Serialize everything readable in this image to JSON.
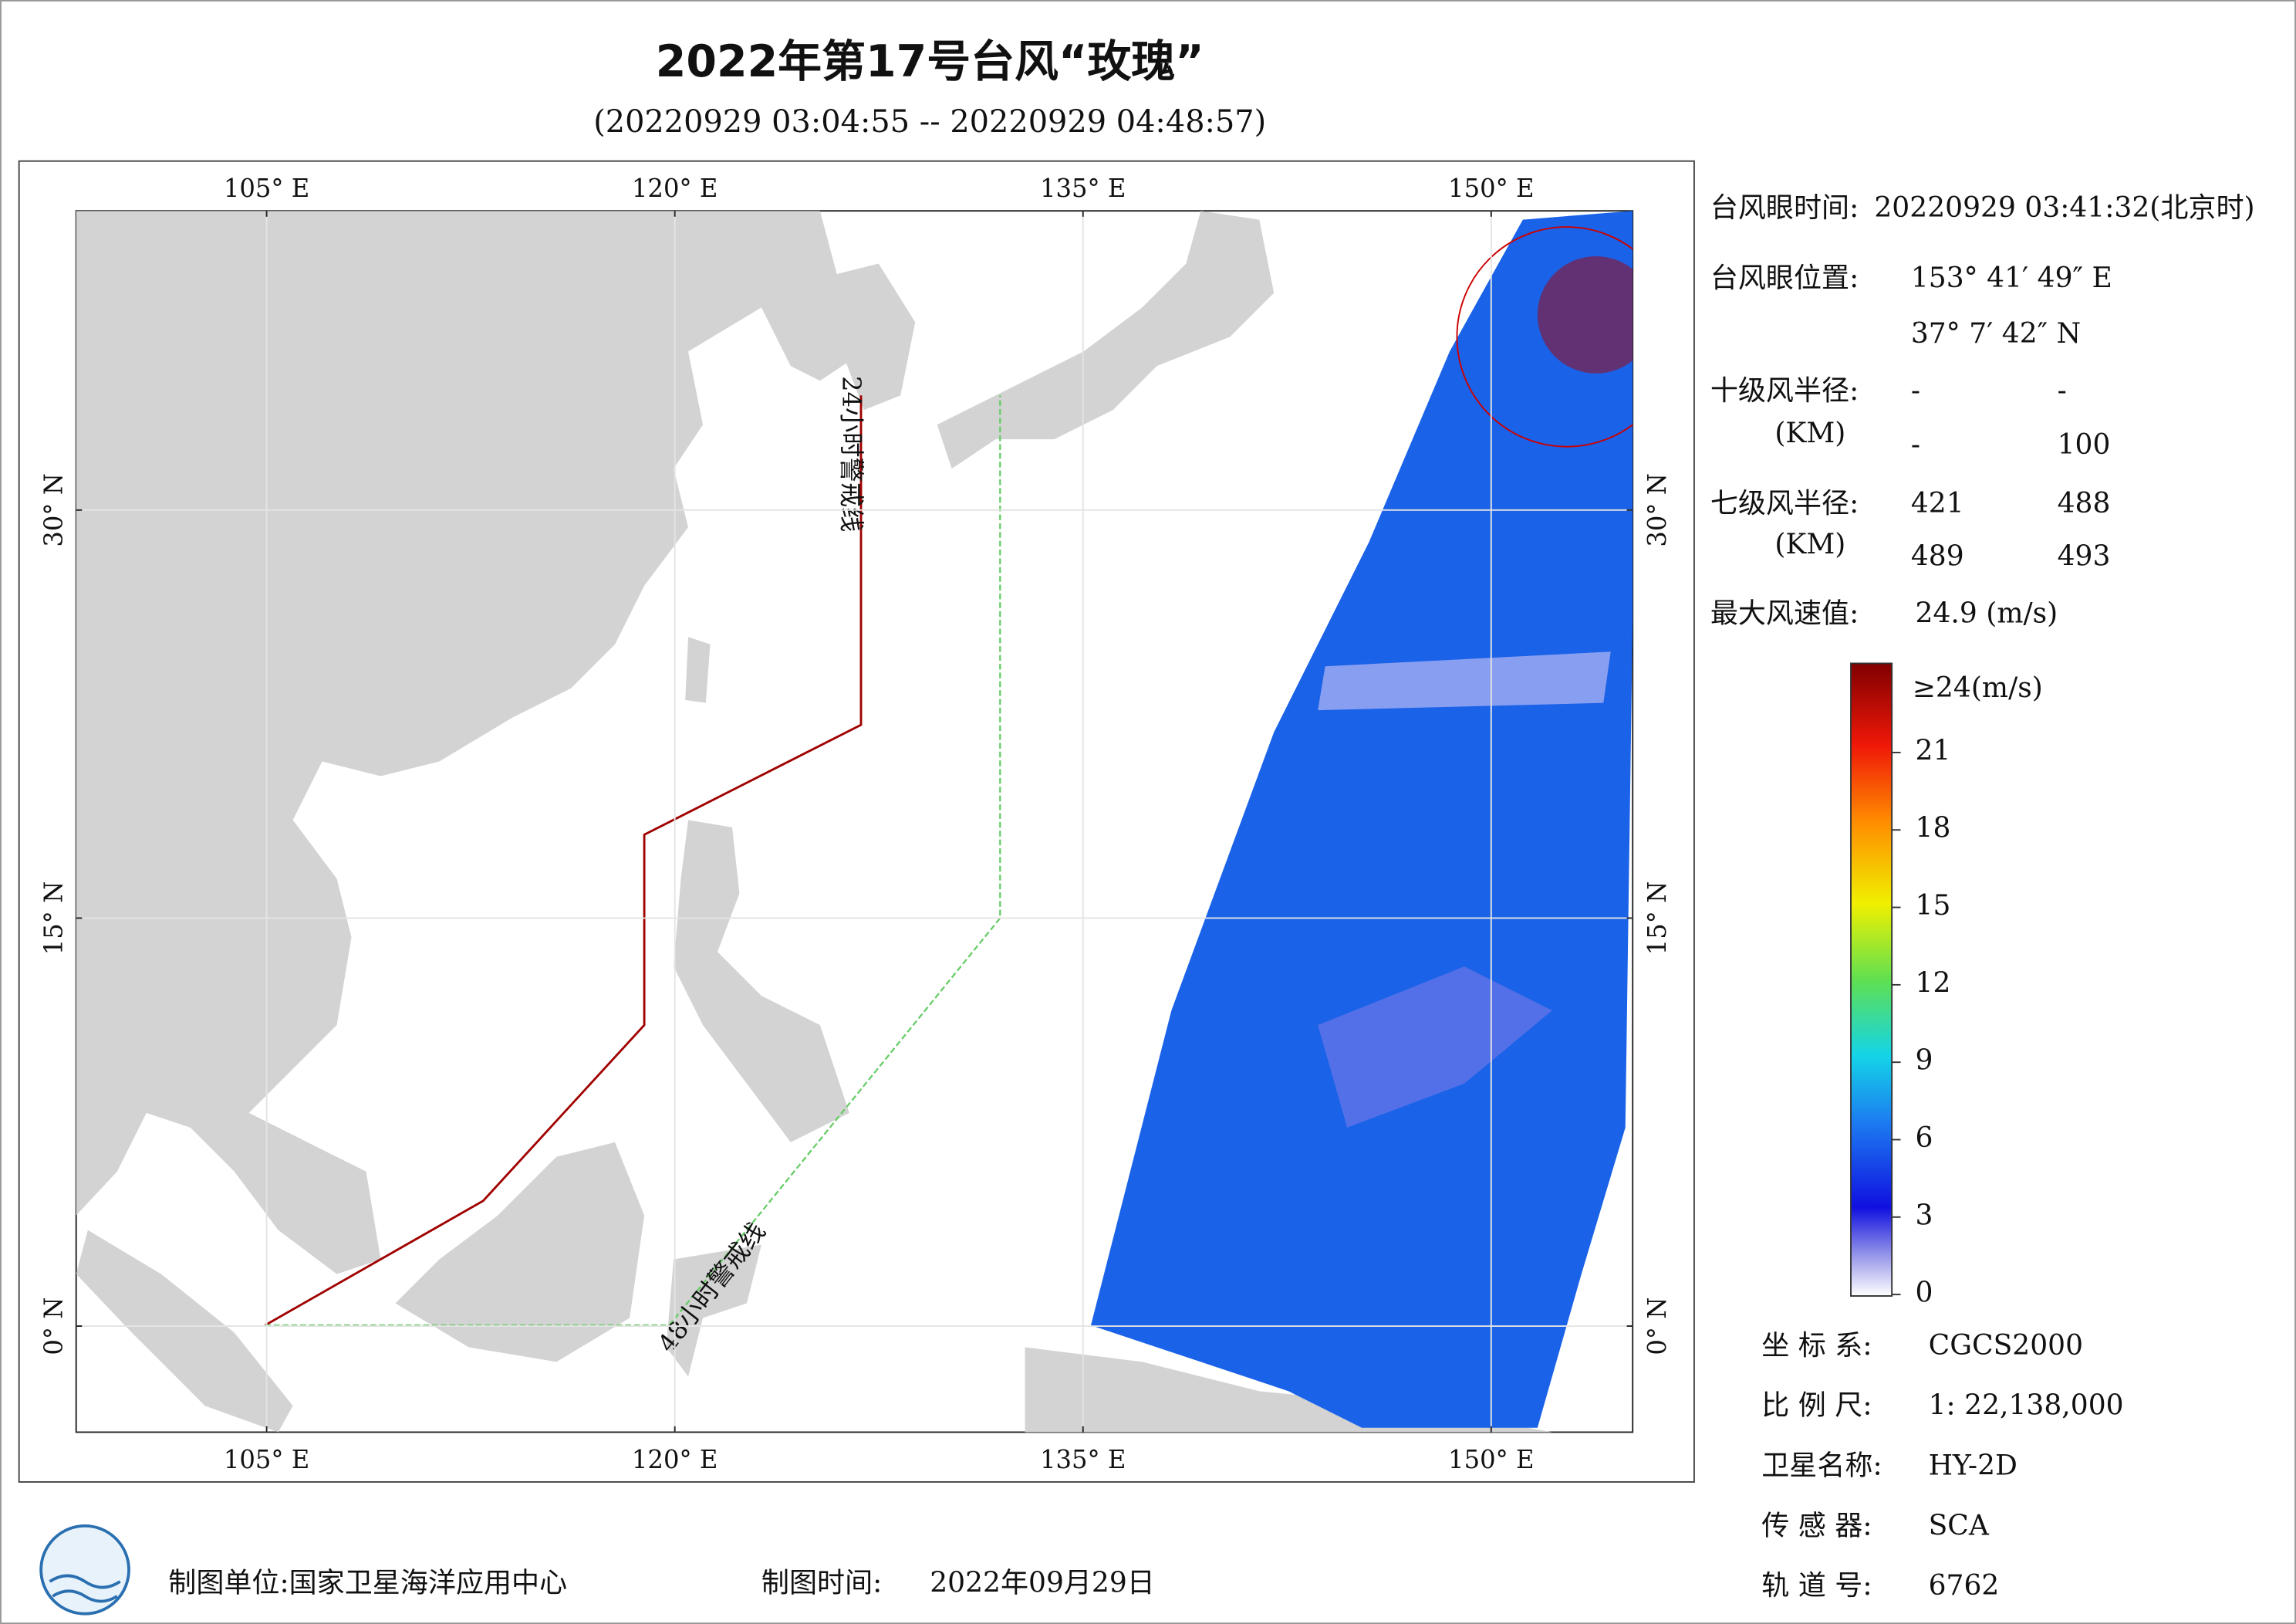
{
  "header": {
    "title": "2022年第17号台风“玫瑰”",
    "subtitle": "(20220929 03:04:55 -- 20220929 04:48:57)"
  },
  "chart_data": {
    "type": "map",
    "xlim": [
      98,
      155.2
    ],
    "ylim": [
      -3.9,
      41
    ],
    "xticks": [
      {
        "value": 105,
        "label": "105° E"
      },
      {
        "value": 120,
        "label": "120° E"
      },
      {
        "value": 135,
        "label": "135° E"
      },
      {
        "value": 150,
        "label": "150° E"
      }
    ],
    "yticks": [
      {
        "value": 0,
        "label": "0° N"
      },
      {
        "value": 15,
        "label": "15° N"
      },
      {
        "value": 30,
        "label": "30° N"
      }
    ],
    "grid": true,
    "warning_labels": [
      "24小时警戒线",
      "48小时警戒线"
    ],
    "colorbar": {
      "clim": [
        0,
        24
      ],
      "ticks": [
        0,
        3,
        6,
        9,
        12,
        15,
        18,
        21
      ],
      "top_label": "≥24(m/s)"
    }
  },
  "info": {
    "eye_time_label": "台风眼时间:",
    "eye_time": "20220929 03:41:32(北京时)",
    "eye_pos_label": "台风眼位置:",
    "eye_lon": "153° 41′ 49″ E",
    "eye_lat": "37° 7′ 42″ N",
    "r10_label": "十级风半径:",
    "km_label": "(KM)",
    "r10": [
      "-",
      "-",
      "-",
      100
    ],
    "r7_label": "七级风半径:",
    "r7": [
      421,
      488,
      489,
      493
    ],
    "max_label": "最大风速值:",
    "max": "24.9  (m/s)"
  },
  "meta": [
    [
      "坐 标 系:",
      "CGCS2000"
    ],
    [
      "比 例 尺:",
      "1: 22,138,000"
    ],
    [
      "卫星名称:",
      "HY-2D"
    ],
    [
      "传 感 器:",
      "SCA"
    ],
    [
      "轨 道 号:",
      6762
    ]
  ],
  "footer": {
    "unit": "制图单位:国家卫星海洋应用中心",
    "time_label": "制图时间:",
    "time": "2022年09月29日"
  }
}
